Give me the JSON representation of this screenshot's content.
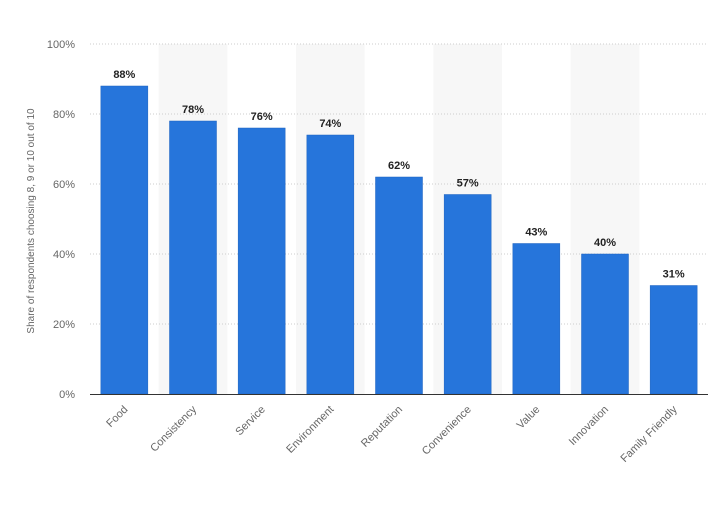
{
  "chart_data": {
    "type": "bar",
    "title": "",
    "xlabel": "",
    "ylabel": "Share of respondents choosing 8, 9 or 10 out of 10",
    "categories": [
      "Food",
      "Consistency",
      "Service",
      "Environment",
      "Reputation",
      "Convenience",
      "Value",
      "Innovation",
      "Family Friendly"
    ],
    "values": [
      88,
      78,
      76,
      74,
      62,
      57,
      43,
      40,
      31
    ],
    "value_labels": [
      "88%",
      "78%",
      "76%",
      "74%",
      "62%",
      "57%",
      "43%",
      "40%",
      "31%"
    ],
    "ylim": [
      0,
      100
    ],
    "yticks": [
      0,
      20,
      40,
      60,
      80,
      100
    ],
    "ytick_labels": [
      "0%",
      "20%",
      "40%",
      "60%",
      "80%",
      "100%"
    ],
    "grid": true,
    "legend": "none",
    "colors": {
      "bar": "#2675DB",
      "bar_edge": "#1E63BF",
      "band": "#F7F7F7",
      "grid": "#CCCCCC",
      "axis": "#333333"
    }
  }
}
